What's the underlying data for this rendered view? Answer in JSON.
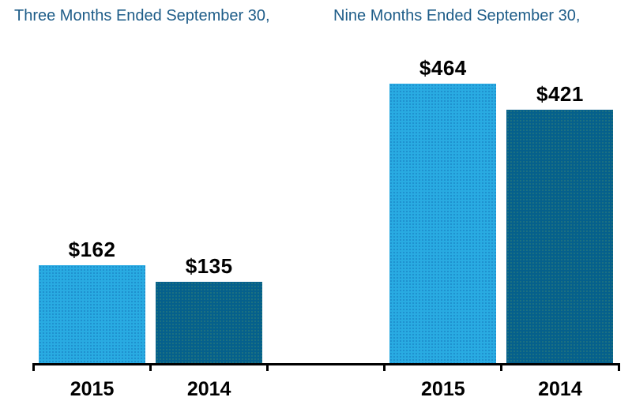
{
  "chart_data": {
    "type": "bar",
    "groups": [
      {
        "label": "Three Months Ended September 30,",
        "bars": [
          {
            "category": "2015",
            "value": 162,
            "value_label": "$162",
            "color": "#29ABE2"
          },
          {
            "category": "2014",
            "value": 135,
            "value_label": "$135",
            "color": "#05608C"
          }
        ]
      },
      {
        "label": "Nine Months Ended September 30,",
        "bars": [
          {
            "category": "2015",
            "value": 464,
            "value_label": "$464",
            "color": "#29ABE2"
          },
          {
            "category": "2014",
            "value": 421,
            "value_label": "$421",
            "color": "#05608C"
          }
        ]
      }
    ],
    "colors": {
      "header_text": "#1D5C88",
      "bar_2015": "#29ABE2",
      "bar_2014": "#05608C",
      "axis": "#000000",
      "value_labels": "#000000",
      "category_labels": "#000000"
    },
    "legend": false,
    "grid": false,
    "y_axis_visible": false
  }
}
